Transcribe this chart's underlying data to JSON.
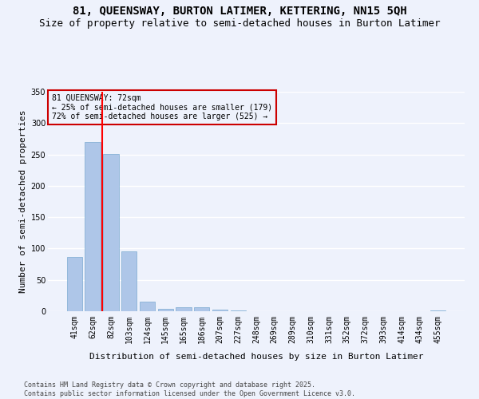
{
  "title1": "81, QUEENSWAY, BURTON LATIMER, KETTERING, NN15 5QH",
  "title2": "Size of property relative to semi-detached houses in Burton Latimer",
  "xlabel": "Distribution of semi-detached houses by size in Burton Latimer",
  "ylabel": "Number of semi-detached properties",
  "categories": [
    "41sqm",
    "62sqm",
    "82sqm",
    "103sqm",
    "124sqm",
    "145sqm",
    "165sqm",
    "186sqm",
    "207sqm",
    "227sqm",
    "248sqm",
    "269sqm",
    "289sqm",
    "310sqm",
    "331sqm",
    "352sqm",
    "372sqm",
    "393sqm",
    "414sqm",
    "434sqm",
    "455sqm"
  ],
  "values": [
    87,
    270,
    251,
    95,
    15,
    4,
    6,
    6,
    3,
    1,
    0,
    0,
    0,
    0,
    0,
    0,
    0,
    0,
    0,
    0,
    1
  ],
  "bar_color": "#aec6e8",
  "bar_edge_color": "#7aaad0",
  "property_line_x": 1.5,
  "annotation_title": "81 QUEENSWAY: 72sqm",
  "annotation_line1": "← 25% of semi-detached houses are smaller (179)",
  "annotation_line2": "72% of semi-detached houses are larger (525) →",
  "annotation_box_color": "#cc0000",
  "ylim": [
    0,
    350
  ],
  "yticks": [
    0,
    50,
    100,
    150,
    200,
    250,
    300,
    350
  ],
  "footer1": "Contains HM Land Registry data © Crown copyright and database right 2025.",
  "footer2": "Contains public sector information licensed under the Open Government Licence v3.0.",
  "bg_color": "#eef2fc",
  "grid_color": "#ffffff",
  "title1_fontsize": 10,
  "title2_fontsize": 9,
  "ylabel_fontsize": 8,
  "xlabel_fontsize": 8,
  "annotation_fontsize": 7,
  "tick_fontsize": 7,
  "footer_fontsize": 6
}
